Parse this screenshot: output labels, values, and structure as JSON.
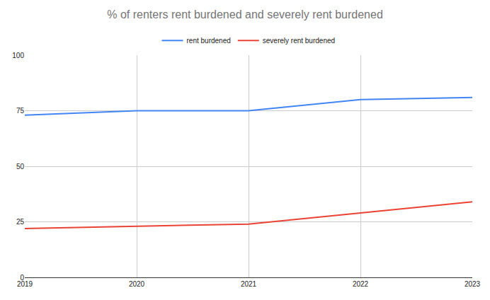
{
  "chart_data": {
    "type": "line",
    "title": "% of renters rent burdened and severely rent burdened",
    "x": [
      2019,
      2020,
      2021,
      2022,
      2023
    ],
    "series": [
      {
        "name": "rent burdened",
        "color": "#4285f4",
        "values": [
          73,
          75,
          75,
          80,
          81
        ]
      },
      {
        "name": "severely rent burdened",
        "color": "#ea4335",
        "values": [
          22,
          23,
          24,
          29,
          34
        ]
      }
    ],
    "xlim": [
      2019,
      2023
    ],
    "xticks": [
      2019,
      2020,
      2021,
      2022,
      2023
    ],
    "ylim": [
      0,
      100
    ],
    "yticks": [
      0,
      25,
      50,
      75,
      100
    ],
    "grid": true,
    "legend": "top"
  }
}
